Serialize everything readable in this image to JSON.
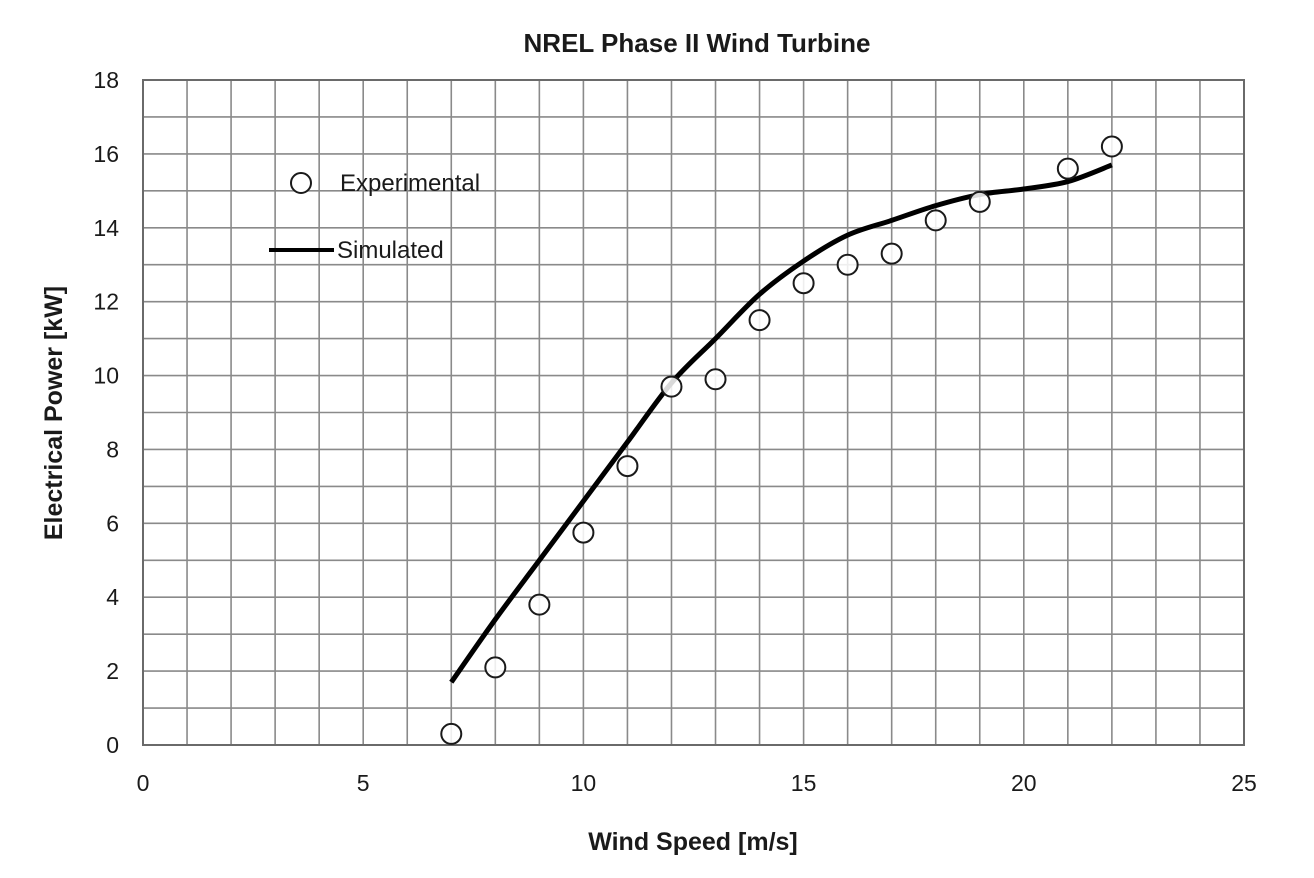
{
  "chart_data": {
    "type": "scatter",
    "title": "NREL Phase II Wind Turbine",
    "xlabel": "Wind Speed [m/s]",
    "ylabel": "Electrical Power [kW]",
    "xlim": [
      0,
      25
    ],
    "ylim": [
      0,
      18
    ],
    "x_ticks": [
      0,
      5,
      10,
      15,
      20,
      25
    ],
    "y_ticks": [
      0,
      2,
      4,
      6,
      8,
      10,
      12,
      14,
      16,
      18
    ],
    "grid": true,
    "legend_position": "top-left",
    "series": [
      {
        "name": "Experimental",
        "type": "scatter",
        "marker": "open-circle",
        "x": [
          7,
          8,
          9,
          10,
          11,
          12,
          13,
          14,
          15,
          16,
          17,
          18,
          19,
          21,
          22
        ],
        "y": [
          0.3,
          2.1,
          3.8,
          5.75,
          7.55,
          9.7,
          9.9,
          11.5,
          12.5,
          13.0,
          13.3,
          14.2,
          14.7,
          15.6,
          16.2
        ]
      },
      {
        "name": "Simulated",
        "type": "line",
        "color": "#000000",
        "x": [
          7,
          8,
          9,
          10,
          11,
          12,
          13,
          14,
          15,
          16,
          17,
          18,
          19,
          20,
          21,
          22
        ],
        "y": [
          1.7,
          3.4,
          5.0,
          6.6,
          8.2,
          9.8,
          11.0,
          12.2,
          13.1,
          13.8,
          14.2,
          14.6,
          14.9,
          15.05,
          15.25,
          15.7
        ]
      }
    ]
  }
}
